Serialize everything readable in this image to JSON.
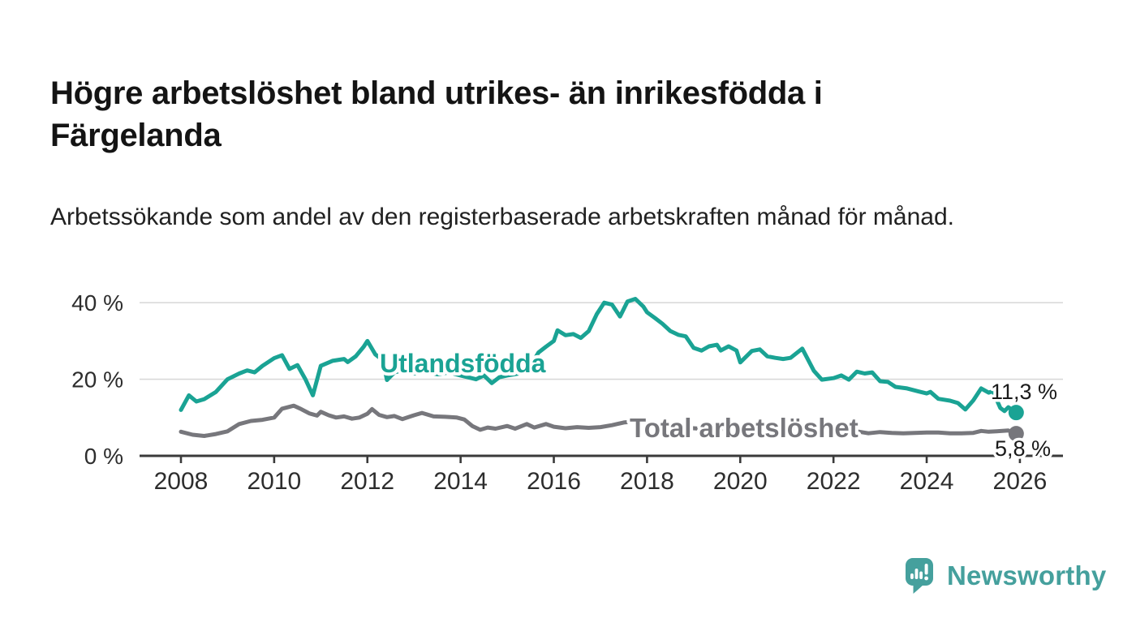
{
  "page": {
    "title": "Högre arbetslöshet bland utrikes- än inrikesfödda i Färgelanda",
    "subtitle": "Arbetssökande som andel av den registerbaserade arbetskraften månad för månad.",
    "branding": {
      "name": "Newsworthy"
    }
  },
  "colors": {
    "utlandsfodda_line": "#1aa394",
    "total_line": "#77777c",
    "axis_line": "#3a3a3a",
    "gridline": "#d9d9d9",
    "value_label_text": "#1a1a1a",
    "brand_teal": "#45a09d"
  },
  "chart_data": {
    "type": "line",
    "title": "Högre arbetslöshet bland utrikes- än inrikesfödda i Färgelanda",
    "subtitle": "Arbetssökande som andel av den registerbaserade arbetskraften månad för månad.",
    "unit": "%",
    "grid": "horizontal",
    "legend_position": "inline-labels",
    "x_ticks": [
      2008,
      2010,
      2012,
      2014,
      2016,
      2018,
      2020,
      2022,
      2024,
      2026
    ],
    "y_ticks": [
      {
        "value": 0,
        "label": "0 %"
      },
      {
        "value": 20,
        "label": "20 %"
      },
      {
        "value": 40,
        "label": "40 %"
      }
    ],
    "x_range": [
      2007.1,
      2026.9
    ],
    "y_range": [
      0,
      45
    ],
    "series": [
      {
        "name": "Utlandsfödda",
        "color": "#1aa394",
        "end_value": 11.3,
        "end_value_label": "11,3 %",
        "points": [
          [
            2008.0,
            12.0
          ],
          [
            2008.17,
            15.8
          ],
          [
            2008.33,
            14.2
          ],
          [
            2008.5,
            14.8
          ],
          [
            2008.75,
            16.7
          ],
          [
            2009.0,
            20.0
          ],
          [
            2009.25,
            21.5
          ],
          [
            2009.42,
            22.3
          ],
          [
            2009.58,
            21.8
          ],
          [
            2009.75,
            23.5
          ],
          [
            2010.0,
            25.5
          ],
          [
            2010.17,
            26.3
          ],
          [
            2010.33,
            22.7
          ],
          [
            2010.5,
            23.7
          ],
          [
            2010.67,
            20.0
          ],
          [
            2010.83,
            15.8
          ],
          [
            2011.0,
            23.5
          ],
          [
            2011.25,
            24.8
          ],
          [
            2011.5,
            25.3
          ],
          [
            2011.58,
            24.5
          ],
          [
            2011.75,
            26.0
          ],
          [
            2011.92,
            28.5
          ],
          [
            2012.0,
            30.0
          ],
          [
            2012.17,
            26.5
          ],
          [
            2012.33,
            25.0
          ],
          [
            2012.42,
            19.8
          ],
          [
            2012.58,
            21.8
          ],
          [
            2012.75,
            22.3
          ],
          [
            2013.0,
            21.5
          ],
          [
            2013.25,
            22.0
          ],
          [
            2013.5,
            21.3
          ],
          [
            2013.75,
            21.8
          ],
          [
            2014.0,
            21.0
          ],
          [
            2014.33,
            20.0
          ],
          [
            2014.5,
            21.0
          ],
          [
            2014.67,
            19.0
          ],
          [
            2014.83,
            20.5
          ],
          [
            2015.0,
            21.0
          ],
          [
            2015.25,
            21.5
          ],
          [
            2015.5,
            23.5
          ],
          [
            2015.67,
            27.0
          ],
          [
            2015.83,
            28.5
          ],
          [
            2016.0,
            30.0
          ],
          [
            2016.08,
            32.8
          ],
          [
            2016.25,
            31.5
          ],
          [
            2016.42,
            31.8
          ],
          [
            2016.58,
            30.8
          ],
          [
            2016.75,
            32.6
          ],
          [
            2016.92,
            37.0
          ],
          [
            2017.08,
            40.0
          ],
          [
            2017.25,
            39.5
          ],
          [
            2017.42,
            36.4
          ],
          [
            2017.58,
            40.3
          ],
          [
            2017.75,
            41.0
          ],
          [
            2017.92,
            39.0
          ],
          [
            2018.0,
            37.5
          ],
          [
            2018.17,
            36.0
          ],
          [
            2018.33,
            34.5
          ],
          [
            2018.5,
            32.6
          ],
          [
            2018.67,
            31.6
          ],
          [
            2018.83,
            31.2
          ],
          [
            2019.0,
            28.2
          ],
          [
            2019.17,
            27.5
          ],
          [
            2019.33,
            28.6
          ],
          [
            2019.5,
            29.0
          ],
          [
            2019.58,
            27.5
          ],
          [
            2019.75,
            28.6
          ],
          [
            2019.92,
            27.5
          ],
          [
            2020.0,
            24.4
          ],
          [
            2020.25,
            27.4
          ],
          [
            2020.42,
            27.8
          ],
          [
            2020.58,
            26.0
          ],
          [
            2020.75,
            25.6
          ],
          [
            2020.92,
            25.3
          ],
          [
            2021.08,
            25.6
          ],
          [
            2021.33,
            28.0
          ],
          [
            2021.58,
            22.2
          ],
          [
            2021.75,
            19.9
          ],
          [
            2022.0,
            20.3
          ],
          [
            2022.17,
            21.0
          ],
          [
            2022.33,
            19.9
          ],
          [
            2022.5,
            22.0
          ],
          [
            2022.67,
            21.5
          ],
          [
            2022.83,
            21.8
          ],
          [
            2023.0,
            19.5
          ],
          [
            2023.17,
            19.3
          ],
          [
            2023.33,
            18.0
          ],
          [
            2023.58,
            17.6
          ],
          [
            2023.83,
            16.8
          ],
          [
            2024.0,
            16.3
          ],
          [
            2024.08,
            16.7
          ],
          [
            2024.25,
            14.9
          ],
          [
            2024.5,
            14.4
          ],
          [
            2024.67,
            13.8
          ],
          [
            2024.83,
            12.1
          ],
          [
            2025.0,
            14.5
          ],
          [
            2025.17,
            17.6
          ],
          [
            2025.33,
            16.5
          ],
          [
            2025.42,
            16.9
          ],
          [
            2025.58,
            12.5
          ],
          [
            2025.67,
            11.7
          ],
          [
            2025.75,
            12.7
          ],
          [
            2025.92,
            11.3
          ]
        ]
      },
      {
        "name": "Total arbetslöshet",
        "color": "#77777c",
        "end_value": 5.8,
        "end_value_label": "5,8 %",
        "points": [
          [
            2008.0,
            6.3
          ],
          [
            2008.25,
            5.5
          ],
          [
            2008.5,
            5.2
          ],
          [
            2008.75,
            5.7
          ],
          [
            2009.0,
            6.4
          ],
          [
            2009.25,
            8.3
          ],
          [
            2009.5,
            9.1
          ],
          [
            2009.75,
            9.4
          ],
          [
            2010.0,
            10.0
          ],
          [
            2010.17,
            12.3
          ],
          [
            2010.42,
            13.1
          ],
          [
            2010.58,
            12.2
          ],
          [
            2010.75,
            11.1
          ],
          [
            2010.92,
            10.5
          ],
          [
            2011.0,
            11.5
          ],
          [
            2011.17,
            10.6
          ],
          [
            2011.33,
            10.0
          ],
          [
            2011.5,
            10.3
          ],
          [
            2011.67,
            9.7
          ],
          [
            2011.83,
            10.0
          ],
          [
            2012.0,
            11.0
          ],
          [
            2012.1,
            12.2
          ],
          [
            2012.25,
            10.7
          ],
          [
            2012.42,
            10.1
          ],
          [
            2012.58,
            10.4
          ],
          [
            2012.75,
            9.6
          ],
          [
            2013.0,
            10.6
          ],
          [
            2013.17,
            11.2
          ],
          [
            2013.42,
            10.3
          ],
          [
            2013.67,
            10.2
          ],
          [
            2013.92,
            10.0
          ],
          [
            2014.08,
            9.5
          ],
          [
            2014.25,
            7.8
          ],
          [
            2014.42,
            6.8
          ],
          [
            2014.58,
            7.4
          ],
          [
            2014.75,
            7.1
          ],
          [
            2015.0,
            7.8
          ],
          [
            2015.17,
            7.1
          ],
          [
            2015.42,
            8.3
          ],
          [
            2015.58,
            7.4
          ],
          [
            2015.83,
            8.3
          ],
          [
            2016.0,
            7.6
          ],
          [
            2016.25,
            7.2
          ],
          [
            2016.5,
            7.5
          ],
          [
            2016.75,
            7.3
          ],
          [
            2017.0,
            7.5
          ],
          [
            2017.25,
            8.0
          ],
          [
            2017.5,
            8.7
          ],
          [
            2017.75,
            9.0
          ],
          [
            2018.0,
            8.5
          ],
          [
            2018.25,
            8.0
          ],
          [
            2018.5,
            7.8
          ],
          [
            2018.75,
            7.4
          ],
          [
            2019.0,
            7.2
          ],
          [
            2019.25,
            7.0
          ],
          [
            2019.5,
            7.1
          ],
          [
            2019.75,
            7.0
          ],
          [
            2020.0,
            7.2
          ],
          [
            2020.25,
            7.5
          ],
          [
            2020.5,
            7.6
          ],
          [
            2020.75,
            7.4
          ],
          [
            2021.0,
            7.2
          ],
          [
            2021.25,
            7.1
          ],
          [
            2021.5,
            7.0
          ],
          [
            2021.75,
            6.9
          ],
          [
            2022.0,
            6.9
          ],
          [
            2022.25,
            6.8
          ],
          [
            2022.5,
            6.4
          ],
          [
            2022.75,
            5.9
          ],
          [
            2023.0,
            6.2
          ],
          [
            2023.25,
            6.0
          ],
          [
            2023.5,
            5.9
          ],
          [
            2023.75,
            6.0
          ],
          [
            2024.0,
            6.1
          ],
          [
            2024.25,
            6.1
          ],
          [
            2024.5,
            5.9
          ],
          [
            2024.75,
            5.9
          ],
          [
            2025.0,
            6.0
          ],
          [
            2025.17,
            6.5
          ],
          [
            2025.33,
            6.3
          ],
          [
            2025.5,
            6.4
          ],
          [
            2025.75,
            6.6
          ],
          [
            2025.92,
            5.8
          ]
        ]
      }
    ]
  }
}
